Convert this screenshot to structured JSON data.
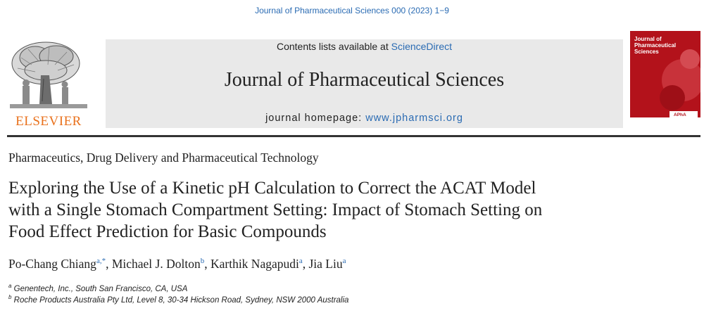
{
  "citation": "Journal of Pharmaceutical Sciences 000 (2023) 1−9",
  "publisher": {
    "logo_text": "ELSEVIER"
  },
  "banner": {
    "contents_prefix": "Contents lists available at ",
    "contents_link": "ScienceDirect",
    "journal_name": "Journal of Pharmaceutical Sciences",
    "homepage_prefix": "journal homepage: ",
    "homepage_link": "www.jpharmsci.org"
  },
  "cover": {
    "title_line1": "Journal of",
    "title_line2": "Pharmaceutical",
    "title_line3": "Sciences",
    "badge": "APhA"
  },
  "article": {
    "section": "Pharmaceutics, Drug Delivery and Pharmaceutical Technology",
    "title": "Exploring the Use of a Kinetic pH Calculation to Correct the ACAT Model with a Single Stomach Compartment Setting: Impact of Stomach Setting on Food Effect Prediction for Basic Compounds",
    "authors": [
      {
        "name": "Po-Chang Chiang",
        "sup": "a,*"
      },
      {
        "name": "Michael J. Dolton",
        "sup": "b"
      },
      {
        "name": "Karthik Nagapudi",
        "sup": "a"
      },
      {
        "name": "Jia Liu",
        "sup": "a"
      }
    ],
    "affiliations": [
      {
        "label": "a",
        "text": "Genentech, Inc., South San Francisco, CA, USA"
      },
      {
        "label": "b",
        "text": "Roche Products Australia Pty Ltd, Level 8, 30-34 Hickson Road, Sydney, NSW 2000 Australia"
      }
    ]
  },
  "colors": {
    "link": "#2a6bb3",
    "elsevier_orange": "#e9711c",
    "cover_red": "#b3121b",
    "banner_gray": "#e9e9e9"
  }
}
